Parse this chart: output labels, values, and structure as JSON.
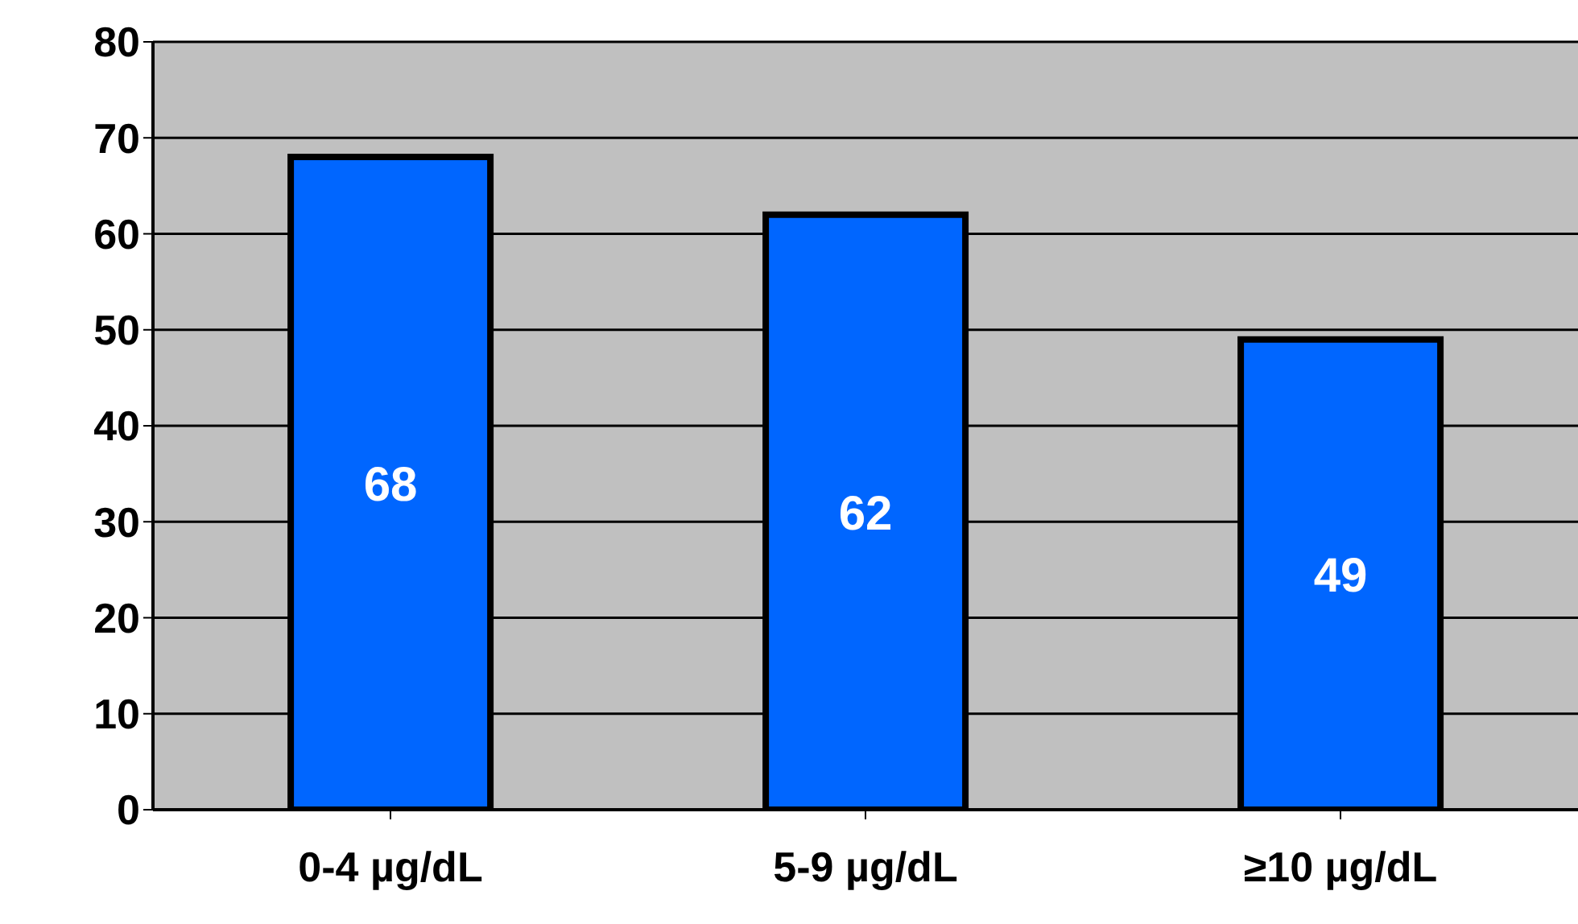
{
  "chart_data": {
    "type": "bar",
    "categories": [
      "0-4 µg/dL",
      "5-9 µg/dL",
      "≥10 µg/dL"
    ],
    "values": [
      68,
      62,
      49
    ],
    "color": "#0066ff",
    "ylim": [
      0,
      80
    ],
    "yticks": [
      0,
      10,
      20,
      30,
      40,
      50,
      60,
      70,
      80
    ],
    "grid": "y",
    "data_labels": true
  }
}
